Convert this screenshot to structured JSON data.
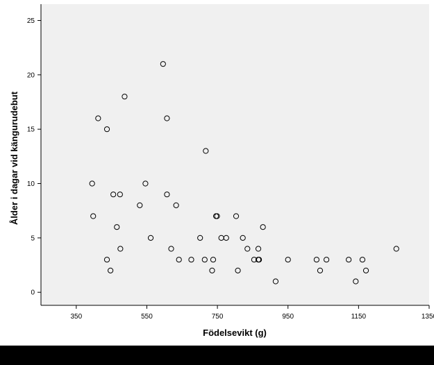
{
  "chart_data": {
    "type": "scatter",
    "title": "",
    "xlabel": "Födelsevikt (g)",
    "ylabel": "Ålder i dagar vid kängurudebut",
    "xlim": [
      250,
      1350
    ],
    "ylim": [
      -1.2,
      26.5
    ],
    "x_ticks": [
      350,
      550,
      750,
      950,
      1150,
      1350
    ],
    "y_ticks": [
      0,
      5,
      10,
      15,
      20,
      25
    ],
    "x_tick_labels": [
      "350",
      "550",
      "750",
      "950",
      "1150",
      "1350"
    ],
    "y_tick_labels": [
      "0",
      "5",
      "10",
      "15",
      "20",
      "25"
    ],
    "grid": false,
    "marker": "open-circle",
    "colors": {
      "axis": "#000000",
      "marker_stroke": "#000000",
      "plot_background": "#f0f0f0",
      "page_background": "#ffffff"
    },
    "series": [
      {
        "points": [
          {
            "x": 395,
            "y": 10
          },
          {
            "x": 398,
            "y": 7
          },
          {
            "x": 412,
            "y": 16
          },
          {
            "x": 437,
            "y": 15
          },
          {
            "x": 437,
            "y": 3
          },
          {
            "x": 447,
            "y": 2
          },
          {
            "x": 455,
            "y": 9
          },
          {
            "x": 465,
            "y": 6
          },
          {
            "x": 474,
            "y": 9
          },
          {
            "x": 475,
            "y": 4
          },
          {
            "x": 487,
            "y": 18
          },
          {
            "x": 530,
            "y": 8
          },
          {
            "x": 546,
            "y": 10
          },
          {
            "x": 561,
            "y": 5
          },
          {
            "x": 596,
            "y": 21
          },
          {
            "x": 607,
            "y": 16
          },
          {
            "x": 607,
            "y": 9
          },
          {
            "x": 619,
            "y": 4
          },
          {
            "x": 633,
            "y": 8
          },
          {
            "x": 641,
            "y": 3
          },
          {
            "x": 676,
            "y": 3
          },
          {
            "x": 701,
            "y": 5
          },
          {
            "x": 714,
            "y": 3
          },
          {
            "x": 717,
            "y": 13
          },
          {
            "x": 735,
            "y": 2
          },
          {
            "x": 738,
            "y": 3
          },
          {
            "x": 746,
            "y": 7
          },
          {
            "x": 749,
            "y": 7
          },
          {
            "x": 761,
            "y": 5
          },
          {
            "x": 775,
            "y": 5
          },
          {
            "x": 803,
            "y": 7
          },
          {
            "x": 808,
            "y": 2
          },
          {
            "x": 822,
            "y": 5
          },
          {
            "x": 835,
            "y": 4
          },
          {
            "x": 854,
            "y": 3
          },
          {
            "x": 866,
            "y": 3
          },
          {
            "x": 868,
            "y": 3
          },
          {
            "x": 866,
            "y": 4
          },
          {
            "x": 879,
            "y": 6
          },
          {
            "x": 915,
            "y": 1
          },
          {
            "x": 950,
            "y": 3
          },
          {
            "x": 1031,
            "y": 3
          },
          {
            "x": 1041,
            "y": 2
          },
          {
            "x": 1059,
            "y": 3
          },
          {
            "x": 1122,
            "y": 3
          },
          {
            "x": 1142,
            "y": 1
          },
          {
            "x": 1161,
            "y": 3
          },
          {
            "x": 1171,
            "y": 2
          },
          {
            "x": 1257,
            "y": 4
          }
        ]
      }
    ]
  }
}
